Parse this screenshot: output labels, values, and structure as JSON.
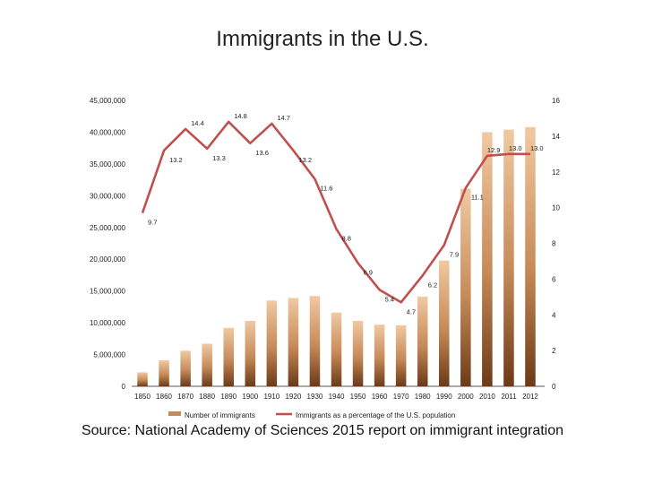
{
  "slide": {
    "title": "Immigrants in the U.S.",
    "source": "Source:  National Academy of Sciences 2015 report on immigrant integration"
  },
  "colors": {
    "bar_light": "#f0c9a3",
    "bar_mid": "#c68a58",
    "bar_dark": "#6b3a17",
    "line": "#c0504d",
    "axis": "#555555",
    "text": "#222222"
  },
  "chart_data": {
    "type": "bar",
    "title": "",
    "xlabel": "",
    "ylabel": "",
    "categories": [
      "1850",
      "1860",
      "1870",
      "1880",
      "1890",
      "1900",
      "1910",
      "1920",
      "1930",
      "1940",
      "1950",
      "1960",
      "1970",
      "1980",
      "1990",
      "2000",
      "2010",
      "2011",
      "2012"
    ],
    "ylim": [
      0,
      45000000
    ],
    "y_ticks": [
      0,
      5000000,
      10000000,
      15000000,
      20000000,
      25000000,
      30000000,
      35000000,
      40000000,
      45000000
    ],
    "y_tick_labels": [
      "0",
      "5,000,000",
      "10,000,000",
      "15,000,000",
      "20,000,000",
      "25,000,000",
      "30,000,000",
      "35,000,000",
      "40,000,000",
      "45,000,000"
    ],
    "y2lim": [
      0,
      16
    ],
    "y2_ticks": [
      0,
      2,
      4,
      6,
      8,
      10,
      12,
      14,
      16
    ],
    "y2_tick_labels": [
      "0",
      "2",
      "4",
      "6",
      "8",
      "10",
      "12",
      "14",
      "16"
    ],
    "series": [
      {
        "name": "Number of immigrants",
        "type": "bar",
        "axis": "left",
        "values": [
          2200000,
          4100000,
          5600000,
          6700000,
          9200000,
          10300000,
          13500000,
          13900000,
          14200000,
          11600000,
          10300000,
          9700000,
          9600000,
          14100000,
          19800000,
          31100000,
          40000000,
          40400000,
          40800000
        ]
      },
      {
        "name": "Immigrants as a percentage of the U.S. population",
        "type": "line",
        "axis": "right",
        "values": [
          9.7,
          13.2,
          14.4,
          13.3,
          14.8,
          13.6,
          14.7,
          13.2,
          11.6,
          8.8,
          6.9,
          5.4,
          4.7,
          6.2,
          7.9,
          11.1,
          12.9,
          13.0,
          13.0
        ],
        "labels": [
          "9.7",
          "13.2",
          "14.4",
          "13.3",
          "14.8",
          "13.6",
          "14.7",
          "13.2",
          "11.6",
          "8.8",
          "6.9",
          "5.4",
          "4.7",
          "6.2",
          "7.9",
          "11.1",
          "12.9",
          "13.0",
          "13.0"
        ]
      }
    ],
    "grid": false,
    "legend_position": "bottom"
  }
}
